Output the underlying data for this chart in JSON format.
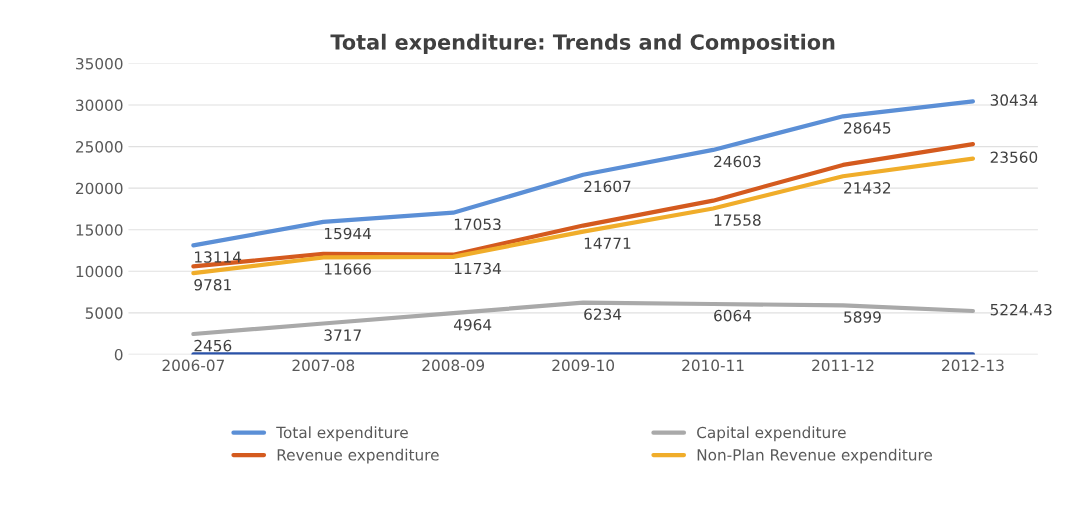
{
  "chart_data": {
    "type": "line",
    "title": "Total expenditure: Trends and Composition",
    "categories": [
      "2006-07",
      "2007-08",
      "2008-09",
      "2009-10",
      "2010-11",
      "2011-12",
      "2012-13"
    ],
    "series": [
      {
        "name": "Total expenditure",
        "color": "#5b8fd6",
        "values": [
          13114,
          15944,
          17053,
          21607,
          24603,
          28645,
          30434
        ],
        "value_labels": [
          "13114",
          "15944",
          "17053",
          "21607",
          "24603",
          "28645",
          "30434"
        ]
      },
      {
        "name": "Revenue expenditure",
        "color": "#d45a1e",
        "values": [
          10600,
          12100,
          12000,
          15500,
          18500,
          22800,
          25300
        ]
      },
      {
        "name": "Capital expenditure",
        "color": "#a9a9a9",
        "values": [
          2456,
          3717,
          4964,
          6234,
          6064,
          5899,
          5224.43
        ],
        "value_labels": [
          "2456",
          "3717",
          "4964",
          "6234",
          "6064",
          "5899",
          "5224.43"
        ]
      },
      {
        "name": "Non-Plan Revenue expenditure",
        "color": "#f0ad2a",
        "values": [
          9781,
          11666,
          11734,
          14771,
          17558,
          21432,
          23560
        ],
        "value_labels": [
          "9781",
          "11666",
          "11734",
          "14771",
          "17558",
          "21432",
          "23560"
        ]
      },
      {
        "color": "#2a52a8",
        "values": [
          0,
          0,
          0,
          0,
          0,
          0,
          0
        ]
      }
    ],
    "ylim": [
      0,
      35000
    ],
    "yticks": [
      0,
      5000,
      10000,
      15000,
      20000,
      25000,
      30000,
      35000
    ],
    "grid": "y",
    "legend": "bottom",
    "marker": "none",
    "line_style": "solid"
  }
}
